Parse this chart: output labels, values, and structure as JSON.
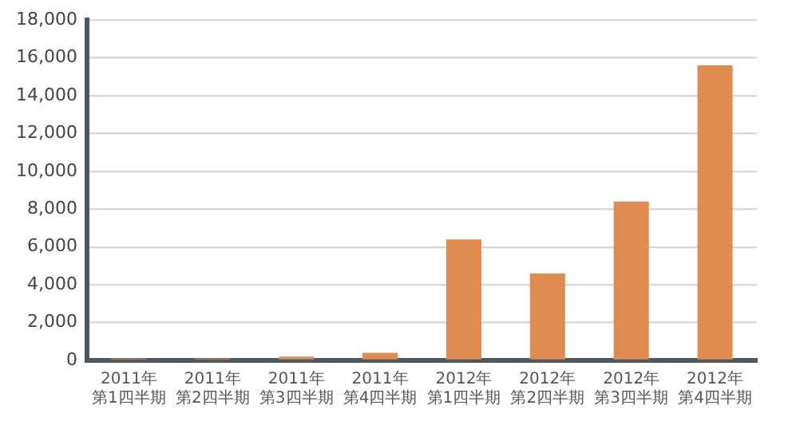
{
  "chart_data": {
    "type": "bar",
    "categories": [
      "2011年第1四半期",
      "2011年第2四半期",
      "2011年第3四半期",
      "2011年第4四半期",
      "2012年第1四半期",
      "2012年第2四半期",
      "2012年第3四半期",
      "2012年第4四半期"
    ],
    "values": [
      100,
      100,
      200,
      400,
      6400,
      4600,
      8400,
      15600
    ],
    "color": "#e08c50",
    "ylim": [
      0,
      18000
    ],
    "yticks": [
      0,
      {
        "value": 2000,
        "label": "2,000"
      },
      {
        "value": 4000,
        "label": "4,000"
      },
      {
        "value": 6000,
        "label": "6,000"
      },
      {
        "value": 8000,
        "label": "8,000"
      },
      {
        "value": 10000,
        "label": "10,000"
      },
      {
        "value": 12000,
        "label": "12,000"
      },
      {
        "value": 14000,
        "label": "14,000"
      },
      {
        "value": 16000,
        "label": "16,000"
      },
      {
        "value": 18000,
        "label": "18,000"
      }
    ],
    "grid": "y",
    "legend": false
  }
}
